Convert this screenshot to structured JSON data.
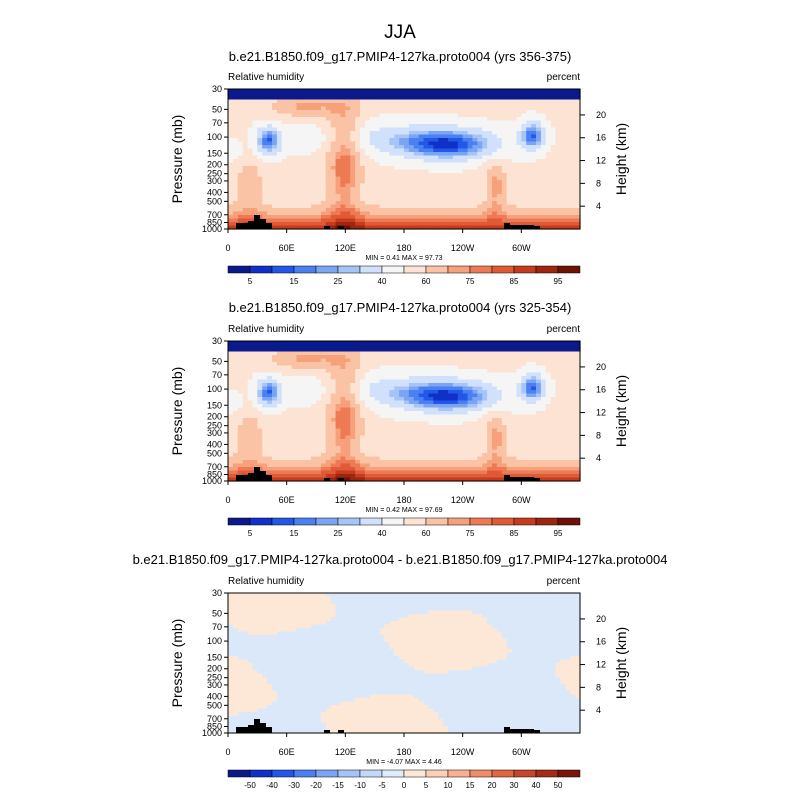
{
  "chart_data": {
    "type": "heatmap",
    "title": "JJA",
    "panels": [
      {
        "title": "b.e21.B1850.f09_g17.PMIP4-127ka.proto004 (yrs 356-375)",
        "left_label": "Relative humidity",
        "right_label": "percent",
        "ylabel": "Pressure (mb)",
        "ylabel_right": "Height (km)",
        "pressure_ticks": [
          "30",
          "50",
          "70",
          "100",
          "150",
          "200",
          "250",
          "300",
          "400",
          "500",
          "700",
          "850",
          "1000"
        ],
        "height_ticks": [
          "20",
          "16",
          "12",
          "8",
          "4"
        ],
        "x_ticks": [
          "0",
          "60E",
          "120E",
          "180",
          "120W",
          "60W"
        ],
        "stats": "MIN =   0.41  MAX =  97.73",
        "colorbar": {
          "colors": [
            "#0a1a8c",
            "#1030c8",
            "#2257e8",
            "#4a80f0",
            "#7aa5f5",
            "#a7c4f7",
            "#d2e1fb",
            "#f5f5f5",
            "#fde3d3",
            "#fbc3a5",
            "#f6a07c",
            "#ee7a55",
            "#e05a35",
            "#c43c1d",
            "#9e2510",
            "#6e1208"
          ],
          "labels": [
            "5",
            "15",
            "25",
            "40",
            "60",
            "75",
            "85",
            "95"
          ]
        }
      },
      {
        "title": "b.e21.B1850.f09_g17.PMIP4-127ka.proto004 (yrs 325-354)",
        "left_label": "Relative humidity",
        "right_label": "percent",
        "ylabel": "Pressure (mb)",
        "ylabel_right": "Height (km)",
        "pressure_ticks": [
          "30",
          "50",
          "70",
          "100",
          "150",
          "200",
          "250",
          "300",
          "400",
          "500",
          "700",
          "850",
          "1000"
        ],
        "height_ticks": [
          "20",
          "16",
          "12",
          "8",
          "4"
        ],
        "x_ticks": [
          "0",
          "60E",
          "120E",
          "180",
          "120W",
          "60W"
        ],
        "stats": "MIN =   0.42  MAX =  97.69",
        "colorbar": {
          "colors": [
            "#0a1a8c",
            "#1030c8",
            "#2257e8",
            "#4a80f0",
            "#7aa5f5",
            "#a7c4f7",
            "#d2e1fb",
            "#f5f5f5",
            "#fde3d3",
            "#fbc3a5",
            "#f6a07c",
            "#ee7a55",
            "#e05a35",
            "#c43c1d",
            "#9e2510",
            "#6e1208"
          ],
          "labels": [
            "5",
            "15",
            "25",
            "40",
            "60",
            "75",
            "85",
            "95"
          ]
        }
      },
      {
        "title": "b.e21.B1850.f09_g17.PMIP4-127ka.proto004 - b.e21.B1850.f09_g17.PMIP4-127ka.proto004",
        "left_label": "Relative humidity",
        "right_label": "percent",
        "ylabel": "Pressure (mb)",
        "ylabel_right": "Height (km)",
        "pressure_ticks": [
          "30",
          "50",
          "70",
          "100",
          "150",
          "200",
          "250",
          "300",
          "400",
          "500",
          "700",
          "850",
          "1000"
        ],
        "height_ticks": [
          "20",
          "16",
          "12",
          "8",
          "4"
        ],
        "x_ticks": [
          "0",
          "60E",
          "120E",
          "180",
          "120W",
          "60W"
        ],
        "stats": "MIN =  -4.07  MAX =   4.46",
        "colorbar": {
          "colors": [
            "#0a1a8c",
            "#1030c8",
            "#2257e8",
            "#4a80f0",
            "#7aa5f5",
            "#a7c4f7",
            "#c4d8f8",
            "#e0ebfb",
            "#fde8d8",
            "#fcd0b5",
            "#f8b090",
            "#f08c68",
            "#e26640",
            "#c8442a",
            "#a42b15",
            "#7a150a"
          ],
          "labels": [
            "-50",
            "-40",
            "-30",
            "-20",
            "-15",
            "-10",
            "-5",
            "0",
            "5",
            "10",
            "15",
            "20",
            "30",
            "40",
            "50"
          ]
        }
      }
    ]
  }
}
